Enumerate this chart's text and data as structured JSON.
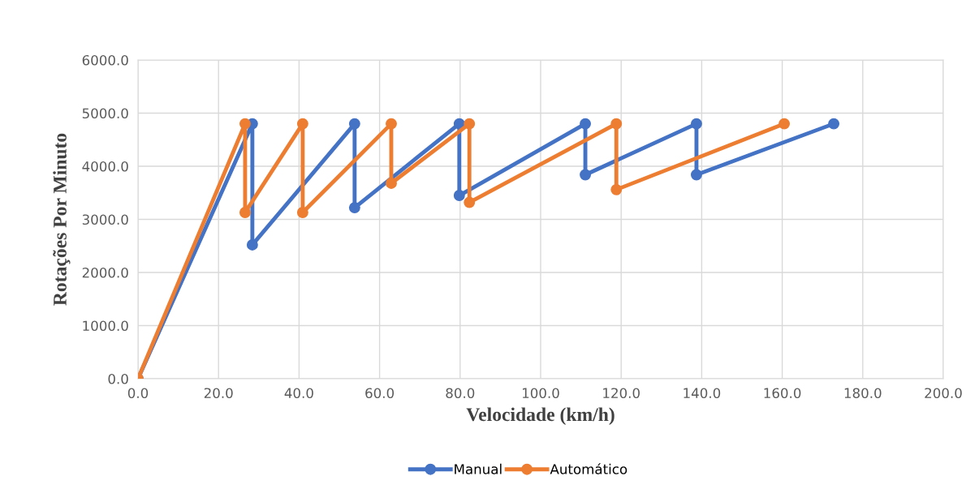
{
  "chart_data": {
    "type": "line",
    "xlabel": "Velocidade (km/h)",
    "ylabel": "Rotações Por Minuto",
    "xlim": [
      0,
      200
    ],
    "xticks": [
      {
        "value": 0,
        "label": "0.0"
      },
      {
        "value": 20,
        "label": "20.0"
      },
      {
        "value": 40,
        "label": "40.0"
      },
      {
        "value": 60,
        "label": "60.0"
      },
      {
        "value": 80,
        "label": "80.0"
      },
      {
        "value": 100,
        "label": "100.0"
      },
      {
        "value": 120,
        "label": "120.0"
      },
      {
        "value": 140,
        "label": "140.0"
      },
      {
        "value": 160,
        "label": "160.0"
      },
      {
        "value": 180,
        "label": "180.0"
      },
      {
        "value": 200,
        "label": "200.0"
      }
    ],
    "ylim": [
      0,
      6000
    ],
    "yticks": [
      {
        "value": 0,
        "label": "0.0"
      },
      {
        "value": 1000,
        "label": "1000.0"
      },
      {
        "value": 2000,
        "label": "2000.0"
      },
      {
        "value": 3000,
        "label": "3000.0"
      },
      {
        "value": 4000,
        "label": "4000.0"
      },
      {
        "value": 5000,
        "label": "5000.0"
      },
      {
        "value": 6000,
        "label": "6000.0"
      }
    ],
    "grid": true,
    "legend": "bottom",
    "marker": "circle",
    "line_style": "solid",
    "series": [
      {
        "name": "Manual",
        "color": "#4472c4",
        "x": [
          0,
          28.4,
          28.4,
          53.8,
          53.8,
          79.8,
          79.8,
          111.1,
          111.1,
          138.7,
          138.7,
          172.8
        ],
        "values": [
          0,
          4800,
          2520,
          4800,
          3220,
          4800,
          3450,
          4800,
          3840,
          4800,
          3840,
          4800
        ]
      },
      {
        "name": "Automático",
        "color": "#ed7d31",
        "x": [
          0,
          26.6,
          26.6,
          40.9,
          40.9,
          62.9,
          62.9,
          82.3,
          82.3,
          118.8,
          118.8,
          160.5
        ],
        "values": [
          0,
          4800,
          3130,
          4800,
          3130,
          4800,
          3680,
          4800,
          3320,
          4800,
          3560,
          4800
        ]
      }
    ]
  }
}
